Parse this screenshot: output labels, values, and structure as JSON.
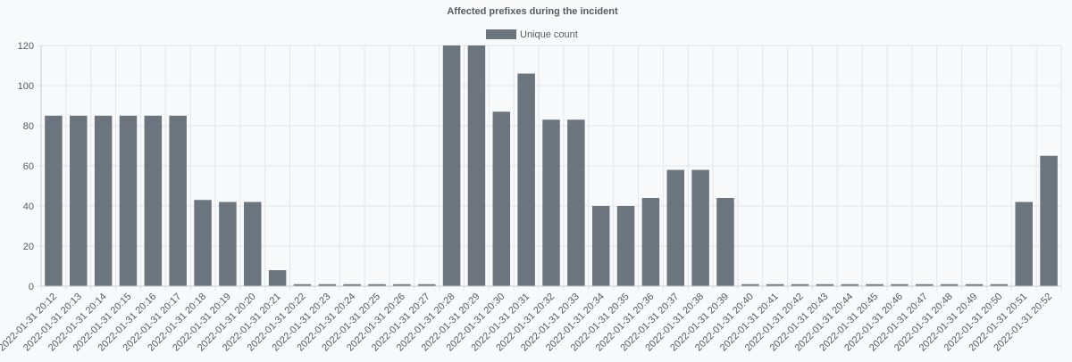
{
  "chart_data": {
    "type": "bar",
    "title": "Affected prefixes during the incident",
    "legend": {
      "position": "top-center",
      "entries": [
        "Unique count"
      ]
    },
    "xlabel": "",
    "ylabel": "",
    "ylim": [
      0,
      120
    ],
    "yticks": [
      0,
      20,
      40,
      60,
      80,
      100,
      120
    ],
    "grid": true,
    "colors": {
      "bar": "#6c757d",
      "grid": "#e3e5e8",
      "axis": "#c9cdd1",
      "text": "#555b61",
      "background": "#f8f9fa"
    },
    "categories": [
      "2022-01-31 20:12",
      "2022-01-31 20:13",
      "2022-01-31 20:14",
      "2022-01-31 20:15",
      "2022-01-31 20:16",
      "2022-01-31 20:17",
      "2022-01-31 20:18",
      "2022-01-31 20:19",
      "2022-01-31 20:20",
      "2022-01-31 20:21",
      "2022-01-31 20:22",
      "2022-01-31 20:23",
      "2022-01-31 20:24",
      "2022-01-31 20:25",
      "2022-01-31 20:26",
      "2022-01-31 20:27",
      "2022-01-31 20:28",
      "2022-01-31 20:29",
      "2022-01-31 20:30",
      "2022-01-31 20:31",
      "2022-01-31 20:32",
      "2022-01-31 20:33",
      "2022-01-31 20:34",
      "2022-01-31 20:35",
      "2022-01-31 20:36",
      "2022-01-31 20:37",
      "2022-01-31 20:38",
      "2022-01-31 20:39",
      "2022-01-31 20:40",
      "2022-01-31 20:41",
      "2022-01-31 20:42",
      "2022-01-31 20:43",
      "2022-01-31 20:44",
      "2022-01-31 20:45",
      "2022-01-31 20:46",
      "2022-01-31 20:47",
      "2022-01-31 20:48",
      "2022-01-31 20:49",
      "2022-01-31 20:50",
      "2022-01-31 20:51",
      "2022-01-31 20:52"
    ],
    "series": [
      {
        "name": "Unique count",
        "values": [
          85,
          85,
          85,
          85,
          85,
          85,
          43,
          42,
          42,
          8,
          1,
          1,
          1,
          1,
          1,
          1,
          120,
          120,
          87,
          106,
          83,
          83,
          40,
          40,
          44,
          58,
          58,
          44,
          1,
          1,
          1,
          1,
          1,
          1,
          1,
          1,
          1,
          1,
          1,
          42,
          65
        ]
      }
    ]
  }
}
